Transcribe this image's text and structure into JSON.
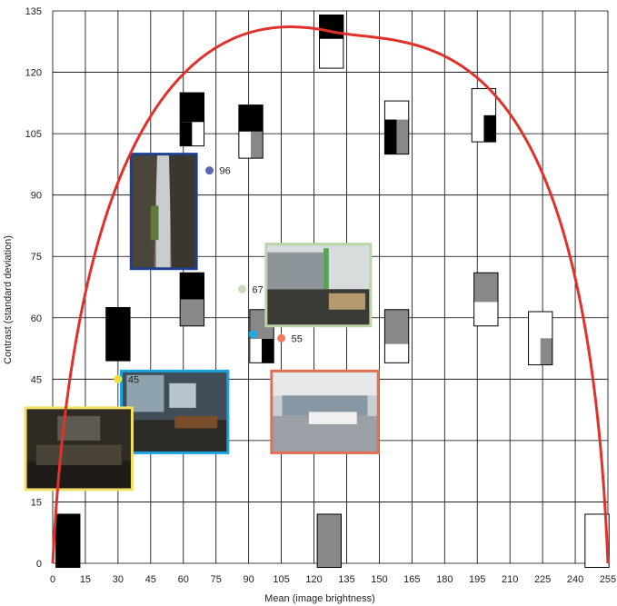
{
  "chart_data": {
    "type": "scatter",
    "xlabel": "Mean (image brightness)",
    "ylabel": "Contrast (standard deviation)",
    "xlim": [
      0,
      255
    ],
    "ylim": [
      0,
      135
    ],
    "x_ticks": [
      "0",
      "15",
      "30",
      "45",
      "60",
      "75",
      "90",
      "105",
      "120",
      "135",
      "150",
      "165",
      "180",
      "195",
      "210",
      "225",
      "240",
      "255"
    ],
    "y_ticks": [
      "0",
      "15",
      "45",
      "60",
      "75",
      "90",
      "105",
      "120",
      "135"
    ],
    "grid": true,
    "curve": {
      "color": "#e0312b",
      "points": [
        [
          0,
          0
        ],
        [
          127.5,
          130
        ],
        [
          255,
          0
        ]
      ]
    },
    "points": [
      {
        "x": 30,
        "y": 45,
        "label": "45",
        "color": "#f2dc3a"
      },
      {
        "x": 105,
        "y": 55,
        "label": "55",
        "color": "#ec7a5c"
      },
      {
        "x": 87,
        "y": 67,
        "label": "67",
        "color": "#c5dcb4"
      },
      {
        "x": 72,
        "y": 96,
        "label": "96",
        "color": "#5a68b0"
      }
    ],
    "extra_markers": [
      {
        "x": 92,
        "y": 56,
        "color": "#1ea9e6"
      }
    ],
    "swatches": [
      {
        "name": "swatch-black-low",
        "x": 7,
        "y": 5.5,
        "w": 11,
        "h": 13,
        "top": 1.0,
        "fill": "#000000"
      },
      {
        "name": "swatch-black-mid",
        "x": 30,
        "y": 56,
        "w": 11,
        "h": 13,
        "top": 1.0,
        "fill": "#000000"
      },
      {
        "name": "swatch-black-white-high",
        "x": 64,
        "y": 108.5,
        "w": 11,
        "h": 13,
        "top": 0.55,
        "fill": "#000000",
        "notch": true
      },
      {
        "name": "swatch-black-white-gray",
        "x": 91,
        "y": 105.5,
        "w": 11,
        "h": 13,
        "top": 0.5,
        "fill": "#000000",
        "lowerSplit": "#ffffff|#888888"
      },
      {
        "name": "swatch-black-gray-mid",
        "x": 64,
        "y": 64.5,
        "w": 11,
        "h": 13,
        "top": 0.5,
        "fill": "#000000",
        "bottomFill": "#888888"
      },
      {
        "name": "swatch-gray-black",
        "x": 96,
        "y": 55.5,
        "w": 11,
        "h": 13,
        "top": 0.55,
        "fill": "#888888",
        "blackCorner": true
      },
      {
        "name": "swatch-top-peak",
        "x": 128,
        "y": 127.5,
        "w": 11,
        "h": 13,
        "top": 0.45,
        "fill": "#000000",
        "bottomFill": "#ffffff"
      },
      {
        "name": "swatch-gray-low",
        "x": 127,
        "y": 5.5,
        "w": 11,
        "h": 13,
        "top": 1.0,
        "fill": "#888888"
      },
      {
        "name": "swatch-white-black-gray",
        "x": 158,
        "y": 106.5,
        "w": 11,
        "h": 13,
        "top": 0.35,
        "fill": "#ffffff",
        "lowerSplit": "#000000|#888888"
      },
      {
        "name": "swatch-gray-white",
        "x": 158,
        "y": 55.5,
        "w": 11,
        "h": 13,
        "top": 0.65,
        "fill": "#888888",
        "bottomFill": "#ffffff"
      },
      {
        "name": "swatch-white-black-right",
        "x": 198,
        "y": 109.5,
        "w": 11,
        "h": 13,
        "top": 0.5,
        "fill": "#ffffff",
        "rightBlock": "#000000"
      },
      {
        "name": "swatch-gray-white-right",
        "x": 199,
        "y": 64.5,
        "w": 11,
        "h": 13,
        "top": 0.55,
        "fill": "#888888",
        "bottomFill": "#ffffff"
      },
      {
        "name": "swatch-white-gray-right",
        "x": 224,
        "y": 55,
        "w": 11,
        "h": 13,
        "top": 0.5,
        "fill": "#ffffff",
        "rightBlock": "#888888",
        "rightBlockLower": true
      },
      {
        "name": "swatch-white-low",
        "x": 250,
        "y": 5.5,
        "w": 11,
        "h": 13,
        "top": 1.0,
        "fill": "#ffffff"
      }
    ],
    "photos": [
      {
        "name": "photo-rock-canyon",
        "x": 51,
        "y": 86,
        "w": 30,
        "h": 28,
        "border": "#1f3f8f",
        "scene": "rocks"
      },
      {
        "name": "photo-classroom-green",
        "x": 122,
        "y": 68,
        "w": 48,
        "h": 20,
        "border": "#b9d4a6",
        "scene": "class-green"
      },
      {
        "name": "photo-classroom-blue",
        "x": 56,
        "y": 37,
        "w": 49,
        "h": 20,
        "border": "#1aa3e0",
        "scene": "class-blue"
      },
      {
        "name": "photo-hall-orange",
        "x": 125,
        "y": 37,
        "w": 49,
        "h": 20,
        "border": "#e26e54",
        "scene": "hall"
      },
      {
        "name": "photo-dark-room-yellow",
        "x": 12,
        "y": 28,
        "w": 49,
        "h": 20,
        "border": "#f4e067",
        "scene": "dark-room"
      }
    ]
  }
}
